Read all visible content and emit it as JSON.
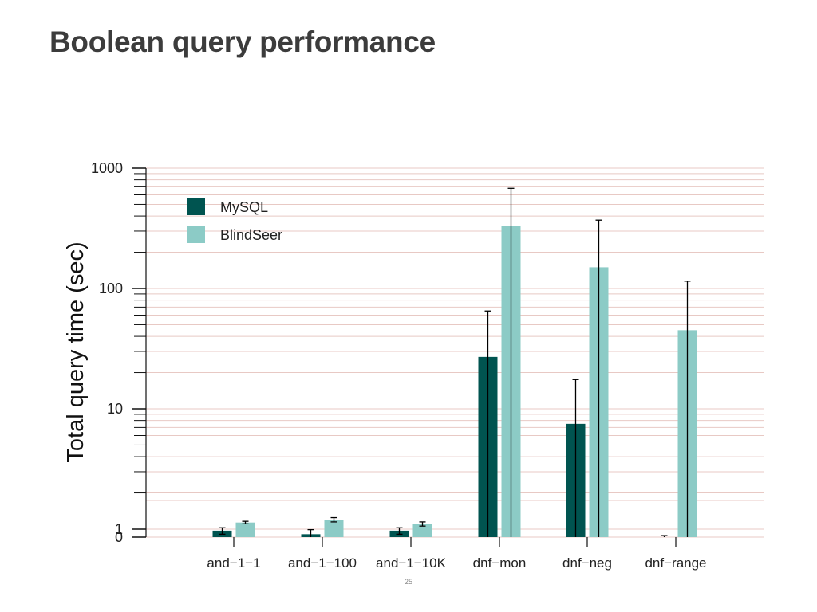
{
  "slide": {
    "title": "Boolean query performance",
    "page_number": "25"
  },
  "chart_data": {
    "type": "bar",
    "title": "",
    "xlabel": "",
    "ylabel": "Total query time (sec)",
    "yscale": "log",
    "ylim": [
      0,
      1000
    ],
    "yticks": [
      {
        "value": 0,
        "label": "0"
      },
      {
        "value": 1,
        "label": "1"
      },
      {
        "value": 10,
        "label": "10"
      },
      {
        "value": 100,
        "label": "100"
      },
      {
        "value": 1000,
        "label": "1000"
      }
    ],
    "grid": true,
    "legend_position": "top-left",
    "categories": [
      "and−1−1",
      "and−1−100",
      "and−1−10K",
      "dnf−mon",
      "dnf−neg",
      "dnf−range"
    ],
    "series": [
      {
        "name": "MySQL",
        "color": "#005450",
        "values": [
          0.15,
          0.12,
          0.15,
          27,
          7.5,
          0.08
        ],
        "error_low": [
          0.12,
          0.09,
          0.12,
          0.02,
          0.02,
          0.05
        ],
        "error_high": [
          0.18,
          0.16,
          0.18,
          65,
          17.5,
          0.11
        ]
      },
      {
        "name": "BlindSeer",
        "color": "#8ccbc6",
        "values": [
          0.25,
          0.3,
          0.23,
          330,
          150,
          45
        ],
        "error_low": [
          0.23,
          0.26,
          0.2,
          0.02,
          0.02,
          0.02
        ],
        "error_high": [
          0.27,
          0.34,
          0.26,
          680,
          370,
          115
        ]
      }
    ]
  }
}
